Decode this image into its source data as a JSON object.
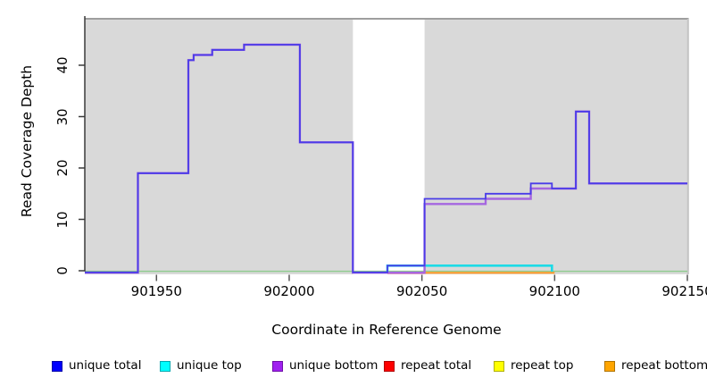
{
  "chart_data": {
    "type": "line",
    "step": true,
    "title": "",
    "xlabel": "Coordinate in Reference Genome",
    "ylabel": "Read Coverage Depth",
    "x_ticks": [
      901950,
      902000,
      902050,
      902100,
      902150
    ],
    "y_ticks": [
      0,
      10,
      20,
      30,
      40
    ],
    "xlim": [
      901923,
      902150
    ],
    "ylim": [
      0,
      49
    ],
    "grid": false,
    "plot_bg_color": "#d9d9d9",
    "gap_region": {
      "x_start": 902024,
      "x_end": 902051,
      "color": "#ffffff"
    },
    "series": [
      {
        "key": "baseline",
        "label": "",
        "line_color": "#90cc90",
        "segments": [
          [
            901923,
            902150,
            0
          ]
        ]
      },
      {
        "key": "unique_top",
        "label": "unique top",
        "line_color": "#1edae6",
        "drop_ends": true,
        "segments": [
          [
            902037,
            902099,
            1
          ]
        ]
      },
      {
        "key": "repeat_bottom",
        "label": "repeat bottom",
        "line_color": "#ff9d2e",
        "segments": [
          [
            902051,
            902100,
            0
          ]
        ]
      },
      {
        "key": "repeat_total",
        "label": "repeat total",
        "line_color": "#ee7388",
        "segments": [
          [
            902037,
            902051,
            0
          ]
        ]
      },
      {
        "key": "repeat_top",
        "label": "repeat top",
        "line_color": "#ffff00",
        "segments": []
      },
      {
        "key": "unique_bottom",
        "label": "unique bottom",
        "line_color": "#a566e0",
        "segments": [
          [
            901923,
            901943,
            0
          ],
          [
            901943,
            901962,
            19
          ],
          [
            901962,
            901964,
            41
          ],
          [
            901964,
            901971,
            42
          ],
          [
            901971,
            901983,
            43
          ],
          [
            901983,
            902004,
            44
          ],
          [
            902004,
            902024,
            25
          ],
          [
            902024,
            902051,
            0
          ],
          [
            902051,
            902074,
            13
          ],
          [
            902074,
            902091,
            14
          ],
          [
            902091,
            902108,
            16
          ],
          [
            902108,
            902113,
            31
          ],
          [
            902113,
            902150,
            17
          ]
        ]
      },
      {
        "key": "unique_total",
        "label": "unique total",
        "line_color": "#4a3ce8",
        "segments": [
          [
            901923,
            901943,
            0
          ],
          [
            901943,
            901962,
            19
          ],
          [
            901962,
            901964,
            41
          ],
          [
            901964,
            901971,
            42
          ],
          [
            901971,
            901983,
            43
          ],
          [
            901983,
            902004,
            44
          ],
          [
            902004,
            902024,
            25
          ],
          [
            902024,
            902037,
            0
          ],
          [
            902037,
            902051,
            1
          ],
          [
            902051,
            902074,
            14
          ],
          [
            902074,
            902091,
            15
          ],
          [
            902091,
            902099,
            17
          ],
          [
            902099,
            902108,
            16
          ],
          [
            902108,
            902113,
            31
          ],
          [
            902113,
            902150,
            17
          ]
        ]
      }
    ],
    "legend": {
      "position": "bottom",
      "items": [
        {
          "label": "unique total",
          "fill": "#0000ff",
          "border": "#0000a8"
        },
        {
          "label": "unique top",
          "fill": "#00ffff",
          "border": "#00a8b0"
        },
        {
          "label": "unique bottom",
          "fill": "#a020f0",
          "border": "#6f10a8"
        },
        {
          "label": "repeat total",
          "fill": "#ff0000",
          "border": "#b00000"
        },
        {
          "label": "repeat top",
          "fill": "#ffff00",
          "border": "#b0b000"
        },
        {
          "label": "repeat bottom",
          "fill": "#ffa500",
          "border": "#b07400"
        }
      ]
    }
  }
}
